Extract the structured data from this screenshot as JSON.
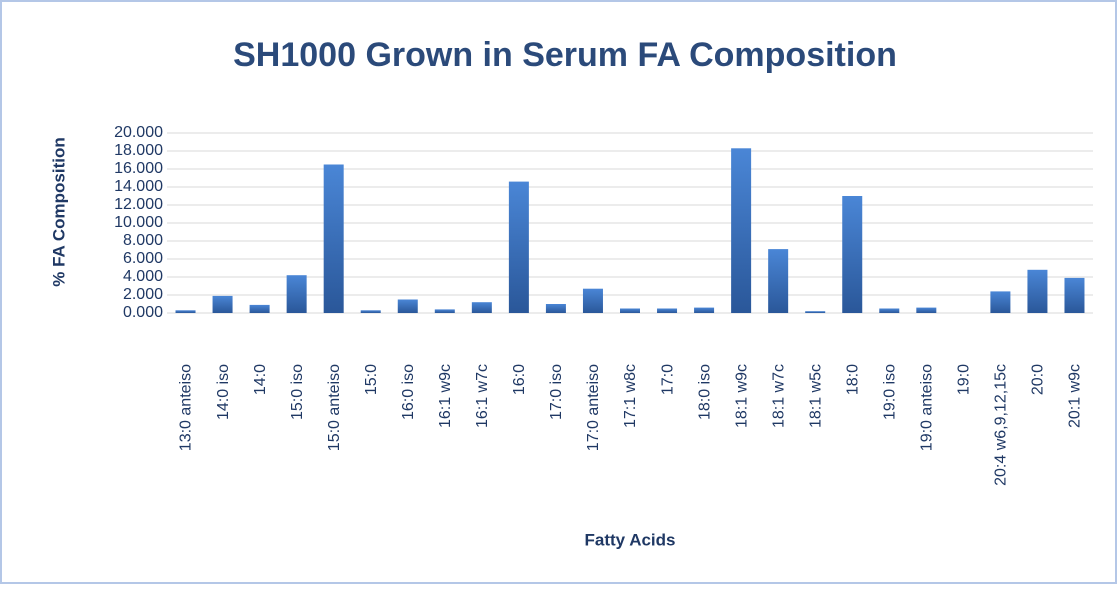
{
  "chart_data": {
    "type": "bar",
    "title": "SH1000 Grown in Serum FA Composition",
    "x_label": "Fatty Acids",
    "y_label": "% FA Composition",
    "categories": [
      "13:0 anteiso",
      "14:0 iso",
      "14:0",
      "15:0 iso",
      "15:0 anteiso",
      "15:0",
      "16:0 iso",
      "16:1 w9c",
      "16:1 w7c",
      "16:0",
      "17:0 iso",
      "17:0 anteiso",
      "17:1 w8c",
      "17:0",
      "18:0 iso",
      "18:1 w9c",
      "18:1 w7c",
      "18:1 w5c",
      "18:0",
      "19:0 iso",
      "19:0 anteiso",
      "19:0",
      "20:4 w6,9,12,15c",
      "20:0",
      "20:1 w9c"
    ],
    "values": [
      0.3,
      1.9,
      0.9,
      4.2,
      16.5,
      0.3,
      1.5,
      0.4,
      1.2,
      14.6,
      1.0,
      2.7,
      0.5,
      0.5,
      0.6,
      18.3,
      7.1,
      0.2,
      13.0,
      0.5,
      0.6,
      0,
      2.4,
      4.8,
      3.9
    ],
    "color": "#4472c4",
    "ylim": [
      0,
      20
    ],
    "yticks": [
      {
        "value": 0,
        "label": "0.000"
      },
      {
        "value": 2,
        "label": "2.000"
      },
      {
        "value": 4,
        "label": "4.000"
      },
      {
        "value": 6,
        "label": "6.000"
      },
      {
        "value": 8,
        "label": "8.000"
      },
      {
        "value": 10,
        "label": "10.000"
      },
      {
        "value": 12,
        "label": "12.000"
      },
      {
        "value": 14,
        "label": "14.000"
      },
      {
        "value": 16,
        "label": "16.000"
      },
      {
        "value": 18,
        "label": "18.000"
      },
      {
        "value": 20,
        "label": "20.000"
      }
    ],
    "grid": true
  }
}
